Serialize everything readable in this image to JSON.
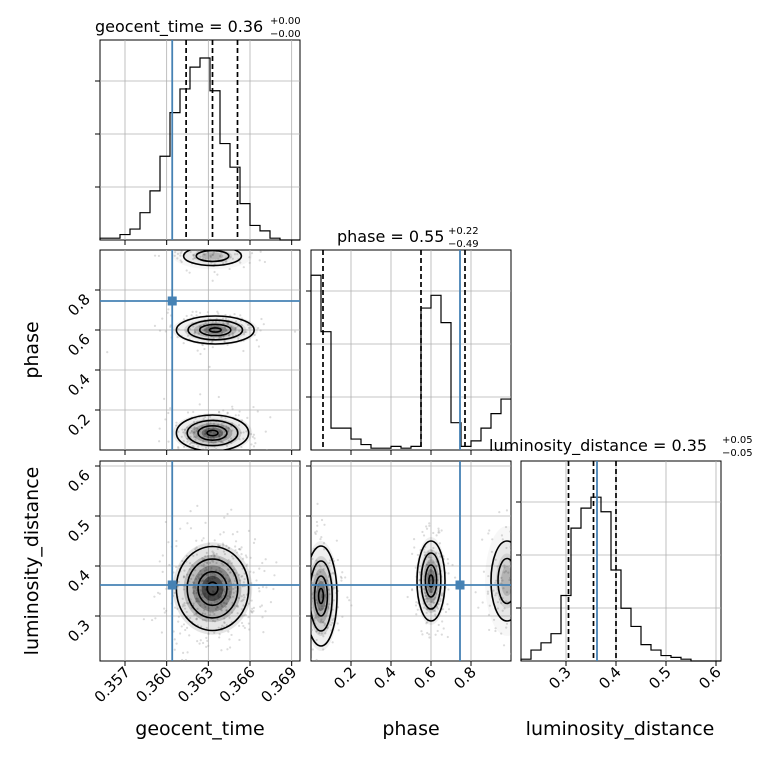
{
  "chart_data": {
    "type": "corner",
    "parameters": [
      "geocent_time",
      "phase",
      "luminosity_distance"
    ],
    "ranges": {
      "geocent_time": [
        0.3552,
        0.3696
      ],
      "phase": [
        0.0,
        1.0
      ],
      "luminosity_distance": [
        0.21,
        0.61
      ]
    },
    "ticks": {
      "geocent_time": [
        "0.357",
        "0.360",
        "0.363",
        "0.366",
        "0.369"
      ],
      "phase": [
        "0.2",
        "0.4",
        "0.6",
        "0.8"
      ],
      "luminosity_distance": [
        "0.3",
        "0.4",
        "0.5",
        "0.6"
      ]
    },
    "tick_values": {
      "geocent_time": [
        0.357,
        0.36,
        0.363,
        0.366,
        0.369
      ],
      "phase": [
        0.2,
        0.4,
        0.6,
        0.8
      ],
      "luminosity_distance": [
        0.3,
        0.4,
        0.5,
        0.6
      ]
    },
    "truths": {
      "geocent_time": 0.3604,
      "phase": 0.745,
      "luminosity_distance": 0.362
    },
    "quantiles": {
      "geocent_time": [
        0.3614,
        0.3633,
        0.3651
      ],
      "phase": [
        0.06,
        0.55,
        0.77
      ],
      "luminosity_distance": [
        0.305,
        0.355,
        0.4
      ]
    },
    "titles": {
      "geocent_time": {
        "label": "geocent_time",
        "value": "0.36",
        "plus": "+0.00",
        "minus": "−0.00"
      },
      "phase": {
        "label": "phase",
        "value": "0.55",
        "plus": "+0.22",
        "minus": "−0.49"
      },
      "luminosity_distance": {
        "label": "luminosity_distance",
        "value": "0.35",
        "plus": "+0.05",
        "minus": "−0.05"
      }
    },
    "histograms": {
      "geocent_time": [
        0.01,
        0.01,
        0.03,
        0.06,
        0.15,
        0.27,
        0.46,
        0.7,
        0.83,
        0.95,
        1.0,
        0.82,
        0.53,
        0.4,
        0.2,
        0.08,
        0.05,
        0.01,
        0.0,
        0.0
      ],
      "phase": [
        0.96,
        0.65,
        0.12,
        0.12,
        0.06,
        0.03,
        0.01,
        0.01,
        0.02,
        0.01,
        0.02,
        0.78,
        0.85,
        0.7,
        0.15,
        0.02,
        0.05,
        0.12,
        0.2,
        0.28
      ],
      "luminosity_distance": [
        0.01,
        0.06,
        0.1,
        0.15,
        0.36,
        0.73,
        0.84,
        0.9,
        0.82,
        0.5,
        0.29,
        0.19,
        0.09,
        0.06,
        0.03,
        0.02,
        0.01,
        0.0,
        0.0,
        0.0
      ]
    },
    "grid": true
  }
}
